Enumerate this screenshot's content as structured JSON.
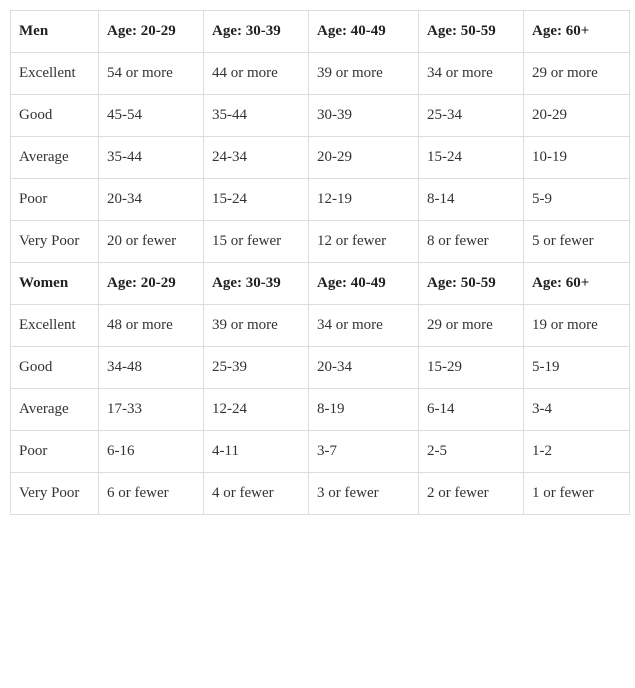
{
  "table": {
    "columns_count": 6,
    "border_color": "#dddddd",
    "background_color": "#ffffff",
    "text_color": "#333333",
    "font_family": "Georgia, serif",
    "cell_fontsize": 15,
    "header_fontweight": "bold",
    "sections": [
      {
        "label": "Men",
        "age_headers": [
          "Age: 20-29",
          "Age: 30-39",
          "Age: 40-49",
          "Age: 50-59",
          "Age: 60+"
        ],
        "rows": [
          {
            "category": "Excellent",
            "values": [
              "54 or more",
              "44 or more",
              "39 or more",
              "34 or more",
              "29 or more"
            ]
          },
          {
            "category": "Good",
            "values": [
              "45-54",
              "35-44",
              "30-39",
              "25-34",
              "20-29"
            ]
          },
          {
            "category": "Average",
            "values": [
              "35-44",
              "24-34",
              "20-29",
              "15-24",
              "10-19"
            ]
          },
          {
            "category": "Poor",
            "values": [
              "20-34",
              "15-24",
              "12-19",
              "8-14",
              "5-9"
            ]
          },
          {
            "category": "Very Poor",
            "values": [
              "20 or fewer",
              "15 or fewer",
              "12 or fewer",
              "8 or fewer",
              "5 or fewer"
            ]
          }
        ]
      },
      {
        "label": "Women",
        "age_headers": [
          "Age: 20-29",
          "Age: 30-39",
          "Age: 40-49",
          "Age: 50-59",
          "Age: 60+"
        ],
        "rows": [
          {
            "category": "Excellent",
            "values": [
              "48 or more",
              "39 or more",
              "34 or more",
              "29 or more",
              "19 or more"
            ]
          },
          {
            "category": "Good",
            "values": [
              "34-48",
              "25-39",
              "20-34",
              "15-29",
              "5-19"
            ]
          },
          {
            "category": "Average",
            "values": [
              "17-33",
              "12-24",
              "8-19",
              "6-14",
              "3-4"
            ]
          },
          {
            "category": "Poor",
            "values": [
              "6-16",
              "4-11",
              "3-7",
              "2-5",
              "1-2"
            ]
          },
          {
            "category": "Very Poor",
            "values": [
              "6 or fewer",
              "4 or fewer",
              "3 or fewer",
              "2 or fewer",
              "1 or fewer"
            ]
          }
        ]
      }
    ]
  }
}
